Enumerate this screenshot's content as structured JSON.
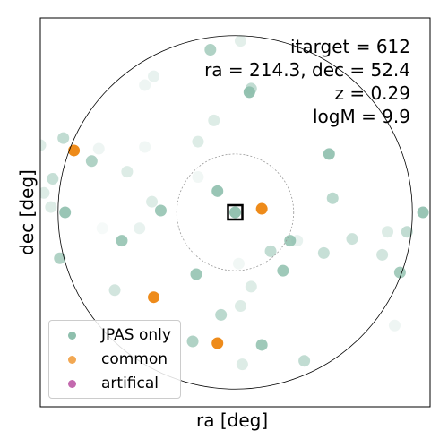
{
  "annotations": {
    "itarget": "itarget = 612",
    "coords": "ra = 214.3, dec = 52.4",
    "redshift": "z = 0.29",
    "mass": "logM = 9.9"
  },
  "axes": {
    "xlabel": "ra [deg]",
    "ylabel": "dec [deg]"
  },
  "legend": [
    {
      "label": "JPAS only",
      "color": "#8ebfad"
    },
    {
      "label": "common",
      "color": "#ee8b1a"
    },
    {
      "label": "artifical",
      "color": "#b4439a"
    }
  ],
  "chart_data": {
    "type": "scatter",
    "xlabel": "ra [deg]",
    "ylabel": "dec [deg]",
    "xlim": [
      -1.1,
      1.1
    ],
    "ylim": [
      -1.1,
      1.1
    ],
    "ticks_shown": false,
    "target": {
      "x": 0.0,
      "y": 0.0,
      "marker": "square"
    },
    "circles": [
      {
        "radius": 1.0,
        "style": "solid"
      },
      {
        "radius": 0.33,
        "style": "dotted"
      }
    ],
    "series": [
      {
        "name": "JPAS only",
        "color": "#8ebfad",
        "points": [
          {
            "x": -0.14,
            "y": 0.92,
            "a": 0.7
          },
          {
            "x": 0.03,
            "y": 0.97,
            "a": 0.25
          },
          {
            "x": 0.09,
            "y": 0.7,
            "a": 0.55
          },
          {
            "x": 0.08,
            "y": 0.68,
            "a": 0.95
          },
          {
            "x": -0.46,
            "y": 0.77,
            "a": 0.2
          },
          {
            "x": -0.97,
            "y": 0.42,
            "a": 0.55
          },
          {
            "x": -1.1,
            "y": 0.38,
            "a": 0.3
          },
          {
            "x": -0.77,
            "y": 0.36,
            "a": 0.15
          },
          {
            "x": -0.81,
            "y": 0.29,
            "a": 0.7
          },
          {
            "x": -0.61,
            "y": 0.23,
            "a": 0.3
          },
          {
            "x": -0.51,
            "y": 0.37,
            "a": 0.12
          },
          {
            "x": -0.21,
            "y": 0.4,
            "a": 0.3
          },
          {
            "x": 0.53,
            "y": 0.33,
            "a": 0.9
          },
          {
            "x": -1.03,
            "y": 0.19,
            "a": 0.5
          },
          {
            "x": -1.08,
            "y": 0.11,
            "a": 0.3
          },
          {
            "x": -1.04,
            "y": 0.03,
            "a": 0.3
          },
          {
            "x": -0.96,
            "y": 0.0,
            "a": 0.9
          },
          {
            "x": -0.47,
            "y": 0.06,
            "a": 0.3
          },
          {
            "x": -0.42,
            "y": 0.01,
            "a": 0.85
          },
          {
            "x": -0.1,
            "y": 0.12,
            "a": 0.9
          },
          {
            "x": 0.0,
            "y": 0.0,
            "a": 0.95
          },
          {
            "x": 0.55,
            "y": 0.08,
            "a": 0.6
          },
          {
            "x": 1.06,
            "y": 0.0,
            "a": 0.9
          },
          {
            "x": -0.75,
            "y": -0.09,
            "a": 0.08
          },
          {
            "x": -0.54,
            "y": -0.09,
            "a": 0.2
          },
          {
            "x": -0.64,
            "y": -0.16,
            "a": 0.85
          },
          {
            "x": 0.31,
            "y": -0.16,
            "a": 0.85
          },
          {
            "x": 0.35,
            "y": -0.16,
            "a": 0.2
          },
          {
            "x": 0.2,
            "y": -0.22,
            "a": 0.55
          },
          {
            "x": 0.5,
            "y": -0.23,
            "a": 0.5
          },
          {
            "x": 0.66,
            "y": -0.15,
            "a": 0.45
          },
          {
            "x": 0.86,
            "y": -0.11,
            "a": 0.3
          },
          {
            "x": 0.97,
            "y": -0.11,
            "a": 0.55
          },
          {
            "x": 0.83,
            "y": -0.24,
            "a": 0.4
          },
          {
            "x": -0.99,
            "y": -0.26,
            "a": 0.7
          },
          {
            "x": 0.02,
            "y": -0.29,
            "a": 0.12
          },
          {
            "x": 0.27,
            "y": -0.33,
            "a": 0.85
          },
          {
            "x": 0.93,
            "y": -0.34,
            "a": 0.8
          },
          {
            "x": -0.22,
            "y": -0.35,
            "a": 0.85
          },
          {
            "x": 0.09,
            "y": -0.42,
            "a": 0.3
          },
          {
            "x": -0.68,
            "y": -0.44,
            "a": 0.4
          },
          {
            "x": 0.03,
            "y": -0.53,
            "a": 0.3
          },
          {
            "x": -0.08,
            "y": -0.58,
            "a": 0.6
          },
          {
            "x": 0.9,
            "y": -0.64,
            "a": 0.15
          },
          {
            "x": -0.24,
            "y": -0.73,
            "a": 0.7
          },
          {
            "x": 0.15,
            "y": -0.75,
            "a": 0.85
          },
          {
            "x": 0.39,
            "y": -0.84,
            "a": 0.55
          },
          {
            "x": 0.04,
            "y": -0.86,
            "a": 0.3
          },
          {
            "x": -0.51,
            "y": 0.72,
            "a": 0.15
          },
          {
            "x": -0.21,
            "y": 0.2,
            "a": 0.12
          },
          {
            "x": -0.12,
            "y": 0.52,
            "a": 0.3
          }
        ]
      },
      {
        "name": "common",
        "color": "#ee8b1a",
        "points": [
          {
            "x": -0.91,
            "y": 0.35
          },
          {
            "x": 0.15,
            "y": 0.02
          },
          {
            "x": -0.46,
            "y": -0.48
          },
          {
            "x": -0.1,
            "y": -0.74
          }
        ]
      },
      {
        "name": "artifical",
        "color": "#b4439a",
        "points": []
      }
    ]
  }
}
